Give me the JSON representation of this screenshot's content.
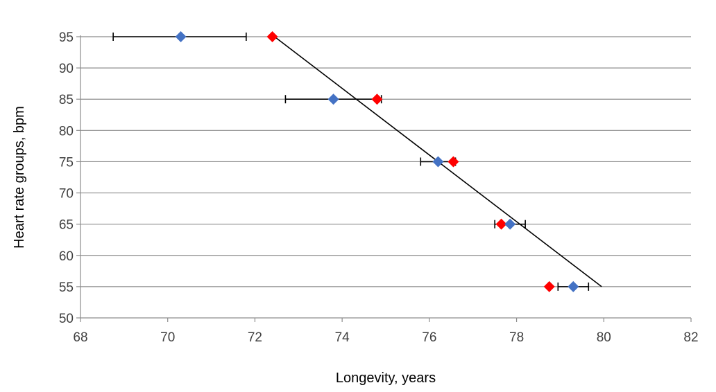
{
  "chart_data": {
    "type": "scatter",
    "xlabel": "Longevity, years",
    "ylabel": "Heart rate groups, bpm",
    "xlim": [
      68,
      82
    ],
    "ylim": [
      50,
      95
    ],
    "xticks": [
      68,
      70,
      72,
      74,
      76,
      78,
      80,
      82
    ],
    "yticks": [
      50,
      55,
      60,
      65,
      70,
      75,
      80,
      85,
      90,
      95
    ],
    "grid": "horizontal",
    "legend": "none",
    "series": [
      {
        "color": "#4472C4",
        "marker": "diamond",
        "points": [
          {
            "x": 70.3,
            "y": 95,
            "err_low": 68.75,
            "err_high": 71.8
          },
          {
            "x": 73.8,
            "y": 85,
            "err_low": 72.7,
            "err_high": 74.9
          },
          {
            "x": 76.2,
            "y": 75,
            "err_low": 75.8,
            "err_high": 76.6
          },
          {
            "x": 77.85,
            "y": 65,
            "err_low": 77.5,
            "err_high": 78.2
          },
          {
            "x": 79.3,
            "y": 55,
            "err_low": 78.95,
            "err_high": 79.65
          }
        ]
      },
      {
        "color": "#FF0000",
        "marker": "diamond",
        "points": [
          {
            "x": 72.4,
            "y": 95
          },
          {
            "x": 74.8,
            "y": 85
          },
          {
            "x": 76.55,
            "y": 75
          },
          {
            "x": 77.65,
            "y": 65
          },
          {
            "x": 78.75,
            "y": 55
          }
        ]
      }
    ],
    "trendline": {
      "x1": 72.45,
      "y1": 95,
      "x2": 79.95,
      "y2": 55,
      "color": "#000000"
    }
  }
}
